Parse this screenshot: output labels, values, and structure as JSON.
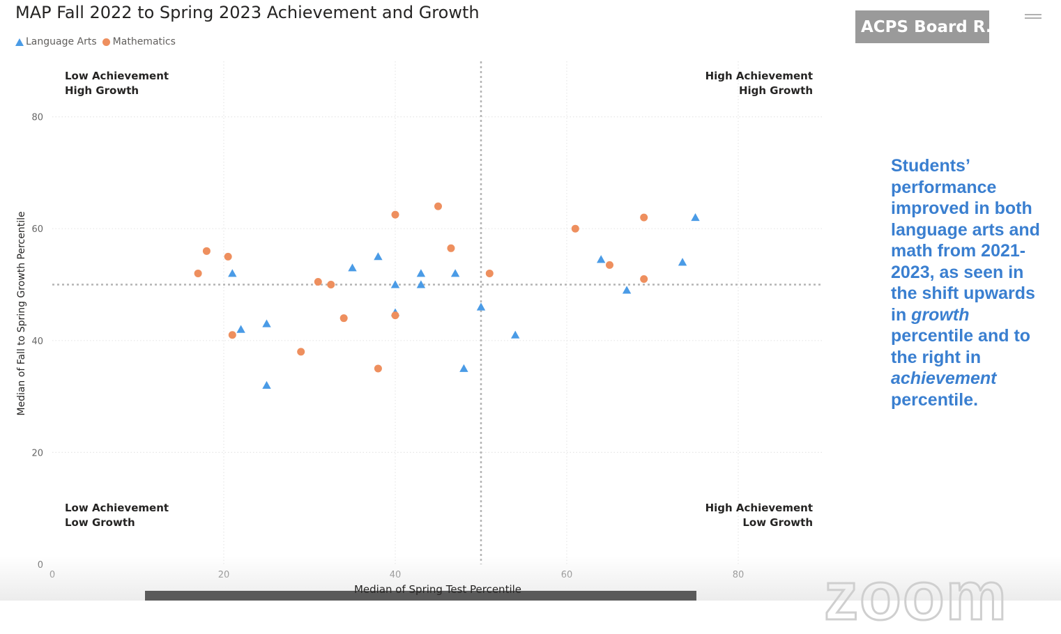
{
  "title": "MAP Fall 2022 to Spring 2023 Achievement and Growth",
  "legend": [
    {
      "label": "Language Arts",
      "color": "#4a9be6",
      "marker": "triangle"
    },
    {
      "label": "Mathematics",
      "color": "#ee8f5e",
      "marker": "circle"
    }
  ],
  "quadrants": {
    "top_left": [
      "Low Achievement",
      "High Growth"
    ],
    "top_right": [
      "High Achievement",
      "High Growth"
    ],
    "bottom_left": [
      "Low Achievement",
      "Low Growth"
    ],
    "bottom_right": [
      "High Achievement",
      "Low Growth"
    ]
  },
  "board_tag": "ACPS Board R...",
  "note": {
    "part1": "Students’ performance improved in both language arts and math from 2021-2023, as seen in the shift upwards in ",
    "em1": "growth",
    "part2": " percentile and to the right in ",
    "em2": "achievement",
    "part3": " percentile."
  },
  "watermark": "zoom",
  "chart_data": {
    "type": "scatter",
    "xlabel": "Median of Spring Test Percentile",
    "ylabel": "Median of Fall to Spring Growth Percentile",
    "xlim": [
      0,
      90
    ],
    "ylim": [
      0,
      88
    ],
    "xticks": [
      0,
      20,
      40,
      60,
      80
    ],
    "yticks": [
      0,
      20,
      40,
      60,
      80
    ],
    "reference_lines": {
      "x": 50,
      "y": 50
    },
    "grid": true,
    "legend_position": "top-left",
    "series": [
      {
        "name": "Language Arts",
        "marker": "triangle",
        "color": "#4a9be6",
        "points": [
          [
            21,
            52
          ],
          [
            22,
            42
          ],
          [
            25,
            43
          ],
          [
            25,
            32
          ],
          [
            35,
            53
          ],
          [
            38,
            55
          ],
          [
            40,
            50
          ],
          [
            40,
            45
          ],
          [
            43,
            52
          ],
          [
            43,
            50
          ],
          [
            47,
            52
          ],
          [
            48,
            35
          ],
          [
            50,
            46
          ],
          [
            54,
            41
          ],
          [
            64,
            54.5
          ],
          [
            67,
            49
          ],
          [
            73.5,
            54
          ],
          [
            75,
            62
          ]
        ]
      },
      {
        "name": "Mathematics",
        "marker": "circle",
        "color": "#ee8f5e",
        "points": [
          [
            17,
            52
          ],
          [
            18,
            56
          ],
          [
            20.5,
            55
          ],
          [
            21,
            41
          ],
          [
            29,
            38
          ],
          [
            31,
            50.5
          ],
          [
            32.5,
            50
          ],
          [
            34,
            44
          ],
          [
            38,
            35
          ],
          [
            40,
            62.5
          ],
          [
            40,
            44.5
          ],
          [
            45,
            64
          ],
          [
            46.5,
            56.5
          ],
          [
            51,
            52
          ],
          [
            61,
            60
          ],
          [
            65,
            53.5
          ],
          [
            69,
            62
          ],
          [
            69,
            51
          ]
        ]
      }
    ]
  }
}
